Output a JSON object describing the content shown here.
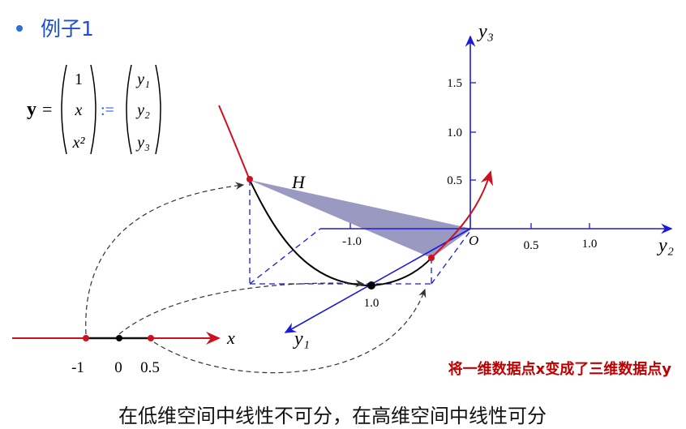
{
  "title": "例子1",
  "equation": {
    "lhs": "y",
    "equals": "=",
    "column": [
      "1",
      "x",
      "x²"
    ],
    "assign": ":=",
    "result": [
      "y₁",
      "y₂",
      "y₃"
    ]
  },
  "axes_3d": {
    "y3": {
      "label": "y₃",
      "ticks": [
        "1.5",
        "1.0",
        "0.5"
      ]
    },
    "y2": {
      "label": "y₂",
      "ticks": [
        "-1.0",
        "0.5",
        "1.0"
      ]
    },
    "y1": {
      "label": "y₁",
      "ticks": [
        "1.0"
      ]
    },
    "origin": "O",
    "plane": "H"
  },
  "axis_1d": {
    "label": "x",
    "ticks": [
      "-1",
      "0",
      "0.5"
    ]
  },
  "caption": "将一维数据点x变成了三维数据点y",
  "conclusion": "在低维空间中线性不可分，在高维空间中线性可分"
}
